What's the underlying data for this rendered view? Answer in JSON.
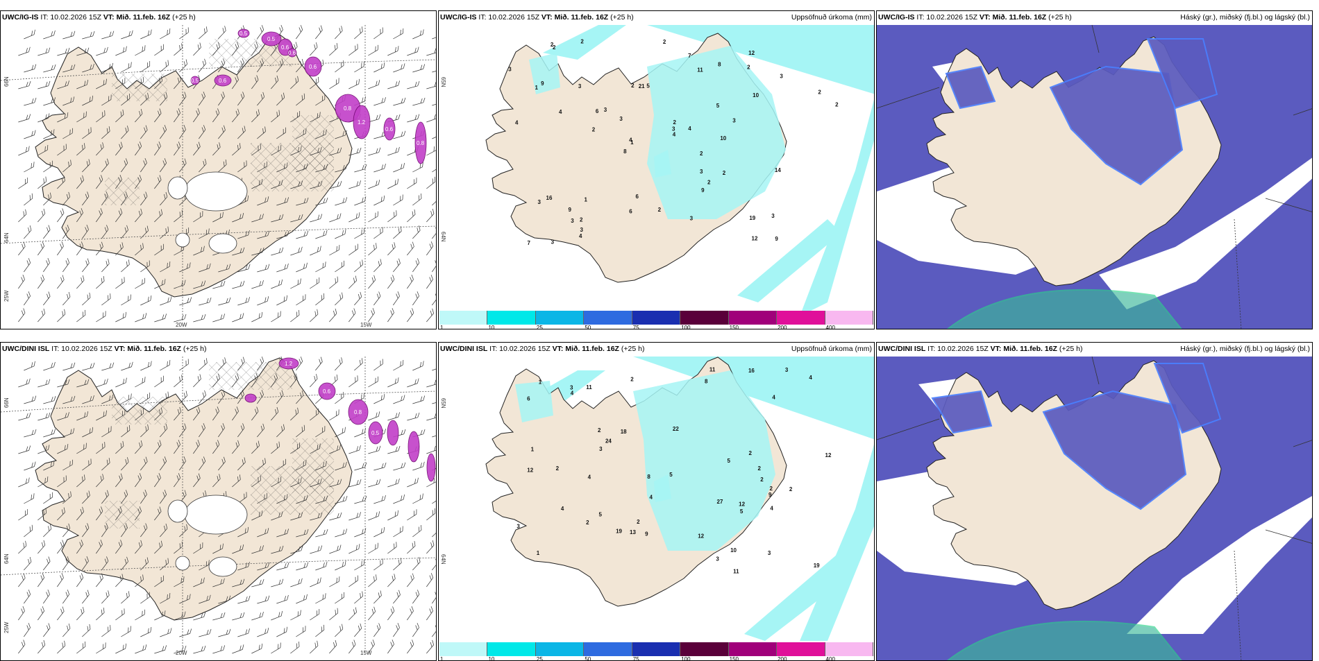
{
  "colors": {
    "land": "#f2e6d6",
    "sea": "#ffffff",
    "precip_cyan": "#a6f5f5",
    "cloud_dark": "#5b5bbf",
    "cloud_blue": "#4a7fff",
    "cloud_light": "#9fd6ff",
    "high_cloud_green": "#3cb89a",
    "precip_magenta": "#c23fc8",
    "hatch": "#444444"
  },
  "rows": [
    {
      "model": "UWC/IG-IS",
      "init": "IT: 10.02.2026 15Z",
      "valid_label": "VT:",
      "valid_time": "Mið. 11.feb. 16Z",
      "lead": "(+25 h)",
      "precip_title": "Uppsöfnuð úrkoma (mm)",
      "cloud_title": "Háský (gr.), miðský (fj.bl.) og lágský (bl.)",
      "lon_labels": [
        "20W",
        "15W"
      ],
      "lat_labels": [
        "66N",
        "64N",
        "25W"
      ],
      "lat_labels_right": [
        "65N",
        "64N"
      ],
      "mag_values": [
        "0.5",
        "0.6",
        "0.6",
        "0.8",
        "1.2",
        "0.6",
        "0.8",
        "0.5",
        "0.6",
        "0.5",
        "0.6"
      ],
      "precip_values": [
        "2",
        "1",
        "1",
        "2",
        "2",
        "1",
        "12",
        "5",
        "11",
        "10",
        "2",
        "9",
        "2",
        "3",
        "8",
        "10",
        "3",
        "2",
        "5",
        "16",
        "3",
        "3",
        "3",
        "21",
        "3",
        "2",
        "9",
        "7",
        "4",
        "3",
        "2",
        "4",
        "6",
        "4",
        "3",
        "8",
        "6",
        "12",
        "3",
        "14",
        "2",
        "6",
        "3",
        "9",
        "4",
        "4",
        "3",
        "7",
        "3",
        "4",
        "3",
        "2",
        "3",
        "2",
        "19",
        "9",
        "2",
        "2",
        "2",
        "2"
      ]
    },
    {
      "model": "UWC/DINI ISL",
      "init": "IT: 10.02.2026 15Z",
      "valid_label": "VT:",
      "valid_time": "Mið. 11.feb. 16Z",
      "lead": "(+25 h)",
      "precip_title": "Uppsöfnuð úrkoma (mm)",
      "cloud_title": "Háský (gr.), miðský (fj.bl.) og lágský (bl.)",
      "lon_labels": [
        "20W",
        "15W"
      ],
      "lat_labels": [
        "66N",
        "64N",
        "25W"
      ],
      "lat_labels_right": [
        "65N",
        "64N"
      ],
      "mag_values": [
        "1.2",
        "0.6",
        "0.8",
        "0.5"
      ],
      "precip_values": [
        "2",
        "2",
        "1",
        "2",
        "18",
        "10",
        "2",
        "8",
        "2",
        "11",
        "6",
        "12",
        "11",
        "3",
        "19",
        "12",
        "4",
        "5",
        "22",
        "4",
        "3",
        "4",
        "3",
        "9",
        "16",
        "3",
        "27",
        "4",
        "4",
        "5",
        "3",
        "12",
        "24",
        "8",
        "2",
        "5",
        "4",
        "2",
        "9",
        "5",
        "4",
        "11",
        "19",
        "13",
        "12",
        "2",
        "3",
        "1",
        "2",
        "1",
        "2"
      ]
    }
  ],
  "colorbar": {
    "ticks": [
      "1",
      "10",
      "25",
      "50",
      "75",
      "100",
      "150",
      "200",
      "400"
    ],
    "colors": [
      "#bff8f8",
      "#00e8e8",
      "#0bb6e6",
      "#2e6be0",
      "#1a2fb0",
      "#5a003a",
      "#a0007a",
      "#e0109a",
      "#f8b8f0"
    ]
  }
}
